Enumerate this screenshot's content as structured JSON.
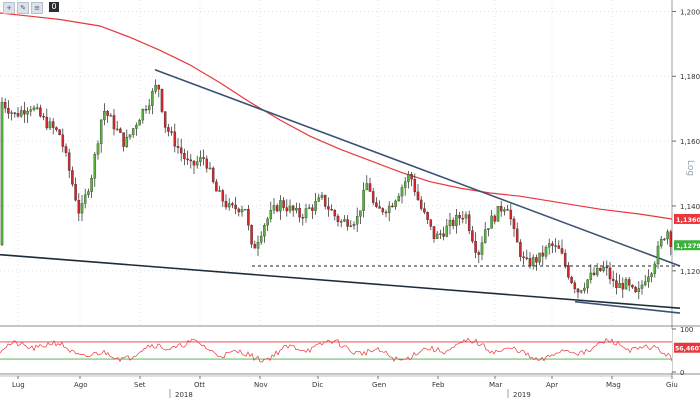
{
  "toolbar": {
    "buttons": [
      {
        "name": "crosshair-icon",
        "glyph": "+"
      },
      {
        "name": "pencil-icon",
        "glyph": "✎"
      },
      {
        "name": "menu-icon",
        "glyph": "≡"
      }
    ],
    "badge": "0"
  },
  "chart_data": [
    {
      "type": "candlestick",
      "instrument": "",
      "y_axis": {
        "ticks": [
          "1,2000",
          "1,1800",
          "1,1600",
          "1,1400",
          "1,1200"
        ],
        "tick_values": [
          1.2,
          1.18,
          1.16,
          1.14,
          1.12
        ],
        "ylim": [
          1.103,
          1.2035
        ],
        "side": "right"
      },
      "x_axis": {
        "months": [
          "Lug",
          "Ago",
          "Set",
          "Ott",
          "Nov",
          "Dic",
          "Gen",
          "Feb",
          "Mar",
          "Apr",
          "Mag",
          "Giu"
        ],
        "years": [
          "2018",
          "2019"
        ]
      },
      "scale_label": "Log",
      "price_labels": [
        {
          "value": "1,1360",
          "color": "#e8383d"
        },
        {
          "value": "1,1279",
          "color": "#3db33d"
        }
      ],
      "moving_average": {
        "color": "#e8383d",
        "points": [
          [
            0,
            1.1995
          ],
          [
            30,
            1.1985
          ],
          [
            60,
            1.1975
          ],
          [
            100,
            1.1955
          ],
          [
            130,
            1.192
          ],
          [
            160,
            1.188
          ],
          [
            190,
            1.1835
          ],
          [
            220,
            1.178
          ],
          [
            250,
            1.172
          ],
          [
            280,
            1.1665
          ],
          [
            310,
            1.1615
          ],
          [
            340,
            1.1575
          ],
          [
            370,
            1.154
          ],
          [
            400,
            1.1505
          ],
          [
            430,
            1.1475
          ],
          [
            460,
            1.1455
          ],
          [
            490,
            1.144
          ],
          [
            520,
            1.143
          ],
          [
            560,
            1.141
          ],
          [
            600,
            1.139
          ],
          [
            640,
            1.1375
          ],
          [
            672,
            1.136
          ]
        ]
      },
      "trendlines": [
        {
          "color": "#3b5373",
          "style": "solid",
          "from": [
            155,
            1.182
          ],
          "to": [
            680,
            1.1215
          ]
        },
        {
          "color": "#1e2c3a",
          "style": "solid",
          "from": [
            0,
            1.125
          ],
          "to": [
            680,
            1.1085
          ]
        },
        {
          "color": "#3b5373",
          "style": "solid",
          "from": [
            575,
            1.1105
          ],
          "to": [
            680,
            1.107
          ]
        },
        {
          "color": "#222222",
          "style": "dashed",
          "from": [
            252,
            1.1215
          ],
          "to": [
            680,
            1.1215
          ]
        }
      ],
      "candles_anchor": [
        [
          2,
          1.172
        ],
        [
          15,
          1.168
        ],
        [
          30,
          1.171
        ],
        [
          45,
          1.166
        ],
        [
          60,
          1.162
        ],
        [
          70,
          1.15
        ],
        [
          80,
          1.137
        ],
        [
          92,
          1.15
        ],
        [
          103,
          1.17
        ],
        [
          112,
          1.166
        ],
        [
          125,
          1.159
        ],
        [
          140,
          1.168
        ],
        [
          150,
          1.173
        ],
        [
          158,
          1.178
        ],
        [
          165,
          1.165
        ],
        [
          178,
          1.158
        ],
        [
          190,
          1.152
        ],
        [
          205,
          1.155
        ],
        [
          215,
          1.145
        ],
        [
          230,
          1.139
        ],
        [
          245,
          1.14
        ],
        [
          252,
          1.126
        ],
        [
          265,
          1.135
        ],
        [
          280,
          1.141
        ],
        [
          300,
          1.137
        ],
        [
          322,
          1.142
        ],
        [
          340,
          1.135
        ],
        [
          357,
          1.136
        ],
        [
          368,
          1.148
        ],
        [
          375,
          1.138
        ],
        [
          390,
          1.14
        ],
        [
          410,
          1.15
        ],
        [
          420,
          1.14
        ],
        [
          435,
          1.13
        ],
        [
          450,
          1.134
        ],
        [
          465,
          1.138
        ],
        [
          478,
          1.125
        ],
        [
          485,
          1.133
        ],
        [
          500,
          1.139
        ],
        [
          507,
          1.141
        ],
        [
          515,
          1.13
        ],
        [
          525,
          1.122
        ],
        [
          540,
          1.124
        ],
        [
          550,
          1.128
        ],
        [
          560,
          1.126
        ],
        [
          570,
          1.118
        ],
        [
          578,
          1.114
        ],
        [
          590,
          1.118
        ],
        [
          605,
          1.121
        ],
        [
          615,
          1.115
        ],
        [
          625,
          1.116
        ],
        [
          637,
          1.112
        ],
        [
          645,
          1.118
        ],
        [
          652,
          1.121
        ],
        [
          660,
          1.128
        ],
        [
          667,
          1.133
        ],
        [
          672,
          1.128
        ]
      ]
    },
    {
      "type": "line",
      "indicator": "oscillator",
      "y_axis": {
        "ticks": [
          "100",
          "0"
        ],
        "ylim": [
          0,
          100
        ]
      },
      "levels": [
        {
          "value": 70,
          "color": "#e8383d"
        },
        {
          "value": 30,
          "color": "#3db33d"
        }
      ],
      "series_color": "#e8383d",
      "last_value_label": "56,4607"
    }
  ]
}
